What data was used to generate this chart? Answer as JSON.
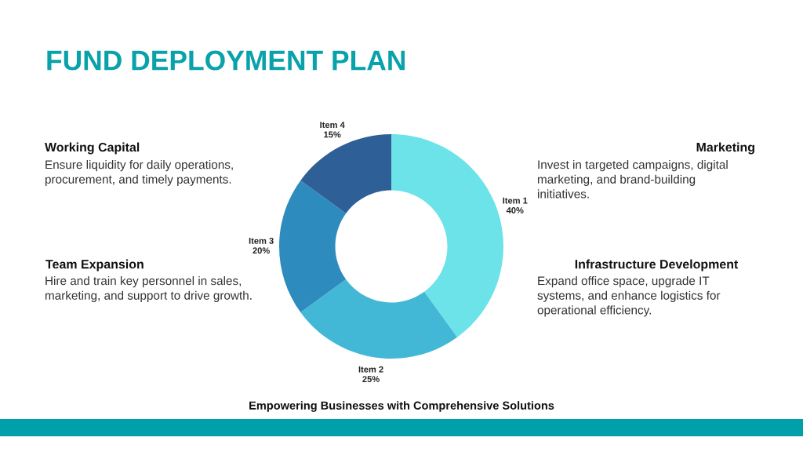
{
  "chart_data": {
    "type": "donut",
    "title": "FUND DEPLOYMENT PLAN",
    "categories": [
      "Item 1",
      "Item 2",
      "Item 3",
      "Item 4"
    ],
    "values": [
      40,
      25,
      20,
      15
    ],
    "value_labels": [
      "40%",
      "25%",
      "20%",
      "15%"
    ],
    "colors": [
      "#6be3e8",
      "#43b8d6",
      "#2e8bbd",
      "#2e5f97"
    ],
    "annotations": [
      "Working Capital",
      "Ensure liquidity for daily operations, procurement, and timely payments.",
      "Marketing",
      "Invest in targeted campaigns, digital marketing, and brand-building initiatives.",
      "Team Expansion",
      "Hire and train key personnel in sales, marketing, and support to drive growth.",
      "Infrastructure Development",
      "Expand office space, upgrade IT systems, and enhance logistics for operational efficiency.",
      "Empowering Businesses with Comprehensive Solutions"
    ]
  }
}
